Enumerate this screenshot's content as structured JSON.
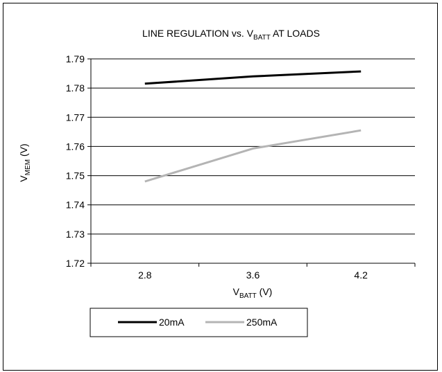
{
  "chart_data": {
    "type": "line",
    "title": {
      "main": "LINE REGULATION vs. V",
      "sub": "BATT",
      "tail": " AT LOADS"
    },
    "xlabel": {
      "main": "V",
      "sub": "BATT",
      "tail": " (V)"
    },
    "ylabel": {
      "main": "V",
      "sub": "MEM",
      "tail": " (V)"
    },
    "categories": [
      "2.8",
      "3.6",
      "4.2"
    ],
    "ylim": [
      1.72,
      1.79
    ],
    "yticks": [
      "1.72",
      "1.73",
      "1.74",
      "1.75",
      "1.76",
      "1.77",
      "1.78",
      "1.79"
    ],
    "grid": true,
    "legend_position": "bottom-left",
    "series": [
      {
        "name": "20mA",
        "values": [
          1.7815,
          1.784,
          1.7857
        ],
        "color": "#000000"
      },
      {
        "name": "250mA",
        "values": [
          1.748,
          1.7593,
          1.7655
        ],
        "color": "#b4b4b4"
      }
    ]
  }
}
